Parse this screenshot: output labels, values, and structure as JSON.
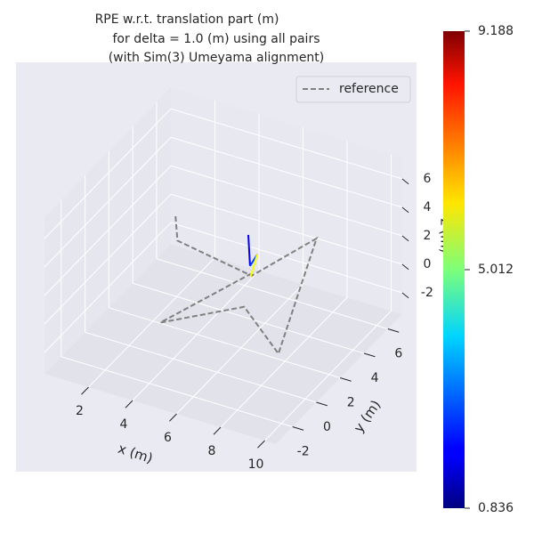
{
  "chart_data": {
    "type": "line3d",
    "title": [
      "RPE w.r.t. translation part (m)",
      "for delta = 1.0 (m) using all pairs",
      "(with Sim(3) Umeyama alignment)"
    ],
    "xlabel": "x (m)",
    "ylabel": "y (m)",
    "zlabel": "z (m)",
    "xlim": [
      0,
      10.5
    ],
    "ylim": [
      -3.4,
      7.2
    ],
    "zlim": [
      -3.5,
      7.5
    ],
    "xticks": [
      2,
      4,
      6,
      8,
      10
    ],
    "yticks": [
      -2,
      0,
      2,
      4,
      6
    ],
    "zticks": [
      -2,
      0,
      2,
      4,
      6
    ],
    "grid": true,
    "legend_position": "upper right",
    "series": [
      {
        "name": "reference",
        "color": "#808080",
        "x": [
          1.4,
          2.3,
          6.1,
          7.1,
          9.7,
          6.9,
          4.5,
          6.0
        ],
        "y": [
          5.0,
          3.5,
          2.7,
          6.3,
          -1.7,
          0.6,
          -2.0,
          2.8
        ],
        "z": [
          1,
          1,
          1,
          1,
          1,
          1,
          1,
          1
        ]
      }
    ],
    "trajectory": {
      "x": [
        5.95,
        6.0,
        6.3,
        6.05
      ],
      "y": [
        2.7,
        2.75,
        2.8,
        2.7
      ],
      "z": [
        3.8,
        1.6,
        2.5,
        0.9
      ],
      "values": [
        1.8,
        2.4,
        6.0,
        8.8
      ]
    },
    "colorbar": {
      "cmap": "jet",
      "clim": [
        0.836,
        9.188
      ],
      "ticks": [
        0.836,
        5.012,
        9.188
      ]
    }
  }
}
